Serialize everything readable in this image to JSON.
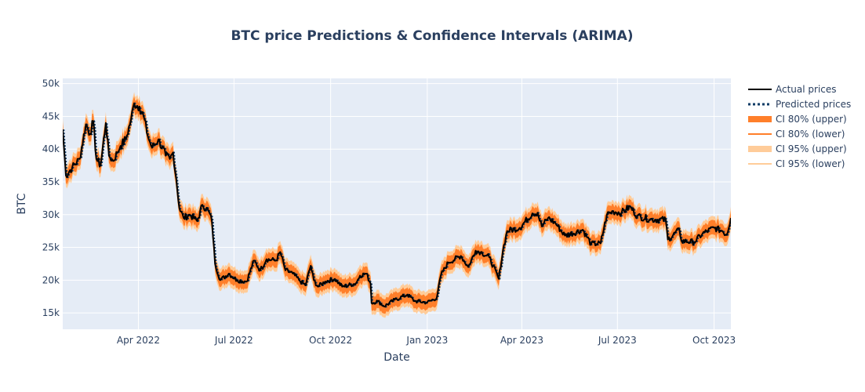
{
  "chart_data": {
    "type": "line",
    "title": "BTC price Predictions & Confidence Intervals (ARIMA)",
    "xlabel": "Date",
    "ylabel": "BTC",
    "x_range": [
      "2022-01-19",
      "2023-10-17"
    ],
    "ylim": [
      12500,
      50800
    ],
    "y_ticks": [
      15000,
      20000,
      25000,
      30000,
      35000,
      40000,
      45000,
      50000
    ],
    "y_tick_labels": [
      "15k",
      "20k",
      "25k",
      "30k",
      "35k",
      "40k",
      "45k",
      "50k"
    ],
    "x_ticks": [
      "2022-04-01",
      "2022-07-01",
      "2022-10-01",
      "2023-01-01",
      "2023-04-01",
      "2023-07-01",
      "2023-10-01"
    ],
    "x_tick_labels": [
      "Apr 2022",
      "Jul 2022",
      "Oct 2022",
      "Jan 2023",
      "Apr 2023",
      "Jul 2023",
      "Oct 2023"
    ],
    "grid": true,
    "legend_position": "top-right",
    "series": [
      {
        "name": "Actual prices",
        "color": "#000000",
        "style": "solid"
      },
      {
        "name": "Predicted prices",
        "color": "#0d3b66",
        "style": "dotted"
      },
      {
        "name": "CI 80% (upper)",
        "color": "#ff7f2a",
        "style": "band"
      },
      {
        "name": "CI 80% (lower)",
        "color": "#ff7f2a",
        "style": "line"
      },
      {
        "name": "CI 95% (upper)",
        "color": "#ffcc99",
        "style": "band"
      },
      {
        "name": "CI 95% (lower)",
        "color": "#ffcc99",
        "style": "line"
      }
    ],
    "ci80_halfwidth": 1100,
    "ci95_halfwidth": 1700,
    "actual": [
      [
        "2022-01-19",
        43000
      ],
      [
        "2022-01-22",
        36000
      ],
      [
        "2022-01-28",
        37200
      ],
      [
        "2022-02-04",
        38500
      ],
      [
        "2022-02-10",
        43800
      ],
      [
        "2022-02-14",
        42300
      ],
      [
        "2022-02-17",
        44300
      ],
      [
        "2022-02-20",
        38500
      ],
      [
        "2022-02-24",
        37500
      ],
      [
        "2022-03-01",
        44000
      ],
      [
        "2022-03-04",
        39000
      ],
      [
        "2022-03-08",
        38200
      ],
      [
        "2022-03-12",
        39500
      ],
      [
        "2022-03-15",
        40500
      ],
      [
        "2022-03-20",
        41500
      ],
      [
        "2022-03-25",
        44500
      ],
      [
        "2022-03-28",
        47000
      ],
      [
        "2022-04-02",
        46500
      ],
      [
        "2022-04-06",
        45000
      ],
      [
        "2022-04-10",
        42000
      ],
      [
        "2022-04-14",
        40200
      ],
      [
        "2022-04-20",
        41500
      ],
      [
        "2022-04-27",
        39000
      ],
      [
        "2022-05-01",
        38500
      ],
      [
        "2022-05-04",
        39500
      ],
      [
        "2022-05-07",
        35500
      ],
      [
        "2022-05-10",
        31000
      ],
      [
        "2022-05-14",
        29500
      ],
      [
        "2022-05-20",
        30000
      ],
      [
        "2022-05-27",
        29000
      ],
      [
        "2022-06-01",
        31500
      ],
      [
        "2022-06-07",
        30500
      ],
      [
        "2022-06-10",
        29000
      ],
      [
        "2022-06-13",
        22500
      ],
      [
        "2022-06-18",
        20000
      ],
      [
        "2022-06-26",
        21000
      ],
      [
        "2022-07-04",
        20000
      ],
      [
        "2022-07-13",
        19800
      ],
      [
        "2022-07-20",
        23000
      ],
      [
        "2022-07-26",
        21500
      ],
      [
        "2022-08-01",
        23200
      ],
      [
        "2022-08-10",
        23000
      ],
      [
        "2022-08-14",
        24300
      ],
      [
        "2022-08-19",
        21500
      ],
      [
        "2022-08-26",
        21000
      ],
      [
        "2022-09-01",
        20000
      ],
      [
        "2022-09-07",
        19200
      ],
      [
        "2022-09-12",
        22200
      ],
      [
        "2022-09-15",
        20000
      ],
      [
        "2022-09-19",
        19000
      ],
      [
        "2022-09-26",
        19800
      ],
      [
        "2022-10-05",
        20200
      ],
      [
        "2022-10-12",
        19000
      ],
      [
        "2022-10-25",
        19500
      ],
      [
        "2022-10-29",
        20700
      ],
      [
        "2022-11-04",
        21000
      ],
      [
        "2022-11-08",
        19500
      ],
      [
        "2022-11-09",
        16500
      ],
      [
        "2022-11-15",
        16800
      ],
      [
        "2022-11-21",
        16000
      ],
      [
        "2022-12-01",
        17000
      ],
      [
        "2022-12-13",
        17800
      ],
      [
        "2022-12-20",
        16800
      ],
      [
        "2023-01-01",
        16600
      ],
      [
        "2023-01-10",
        17300
      ],
      [
        "2023-01-14",
        20800
      ],
      [
        "2023-01-21",
        22700
      ],
      [
        "2023-02-02",
        23700
      ],
      [
        "2023-02-09",
        22000
      ],
      [
        "2023-02-16",
        24500
      ],
      [
        "2023-02-21",
        24300
      ],
      [
        "2023-03-01",
        23500
      ],
      [
        "2023-03-10",
        20200
      ],
      [
        "2023-03-14",
        24500
      ],
      [
        "2023-03-18",
        27500
      ],
      [
        "2023-03-30",
        28000
      ],
      [
        "2023-04-11",
        30200
      ],
      [
        "2023-04-16",
        30300
      ],
      [
        "2023-04-20",
        28200
      ],
      [
        "2023-04-26",
        29500
      ],
      [
        "2023-05-03",
        28700
      ],
      [
        "2023-05-12",
        26800
      ],
      [
        "2023-05-29",
        27700
      ],
      [
        "2023-06-06",
        25500
      ],
      [
        "2023-06-15",
        25600
      ],
      [
        "2023-06-21",
        30000
      ],
      [
        "2023-06-27",
        30500
      ],
      [
        "2023-07-05",
        30300
      ],
      [
        "2023-07-13",
        31200
      ],
      [
        "2023-07-20",
        29800
      ],
      [
        "2023-08-01",
        29300
      ],
      [
        "2023-08-16",
        29200
      ],
      [
        "2023-08-18",
        26200
      ],
      [
        "2023-08-29",
        27700
      ],
      [
        "2023-08-31",
        26000
      ],
      [
        "2023-09-12",
        25800
      ],
      [
        "2023-09-20",
        27100
      ],
      [
        "2023-10-01",
        28000
      ],
      [
        "2023-10-09",
        27500
      ],
      [
        "2023-10-13",
        26900
      ],
      [
        "2023-10-17",
        29500
      ]
    ]
  }
}
